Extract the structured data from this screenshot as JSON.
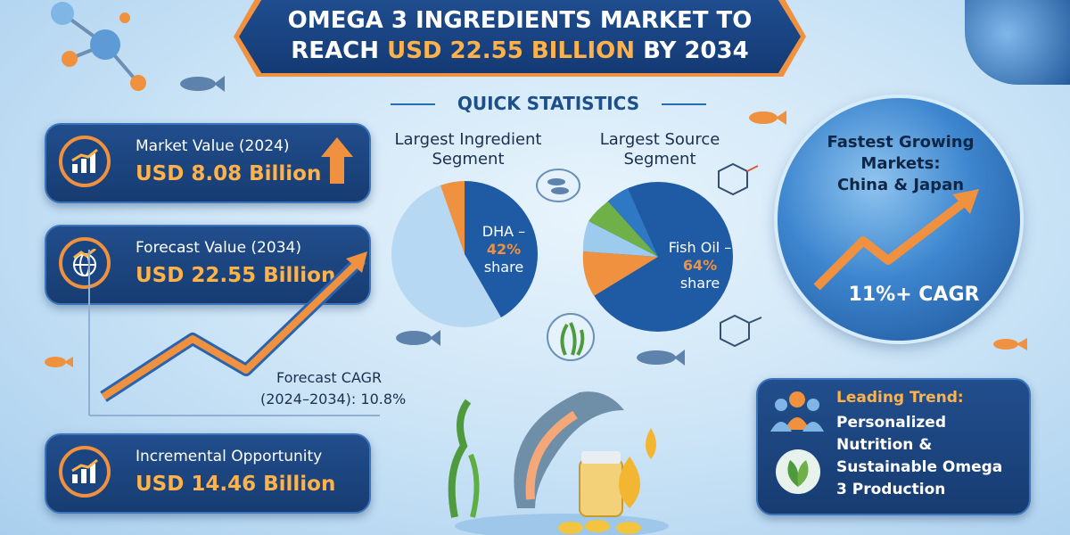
{
  "title": {
    "line1": "OMEGA 3 INGREDIENTS MARKET TO",
    "line2_prefix": "REACH ",
    "line2_accent": "USD 22.55 BILLION",
    "line2_suffix": " BY 2034"
  },
  "quick_statistics": "QUICK STATISTICS",
  "cards": [
    {
      "label": "Market Value (2024)",
      "value": "USD 8.08 Billion",
      "icon": "bar-chart-growth-icon"
    },
    {
      "label": "Forecast Value (2034)",
      "value": "USD 22.55 Billion",
      "icon": "globe-growth-icon"
    },
    {
      "label": "Incremental Opportunity",
      "value": "USD 14.46 Billion",
      "icon": "bar-chart-growth-icon"
    }
  ],
  "forecast_cagr": {
    "line1": "Forecast CAGR",
    "line2": "(2024–2034): 10.8%"
  },
  "ingredient_pie": {
    "title_line1": "Largest Ingredient",
    "title_line2": "Segment",
    "label_name": "DHA –",
    "label_pct": "42%",
    "label_suffix": "share"
  },
  "source_pie": {
    "title_line1": "Largest Source",
    "title_line2": "Segment",
    "label_name": "Fish Oil –",
    "label_pct": "64%",
    "label_suffix": "share"
  },
  "globe": {
    "title_line1": "Fastest Growing",
    "title_line2": "Markets:",
    "title_line3": "China & Japan",
    "cagr": "11%+ CAGR"
  },
  "trend": {
    "title": "Leading Trend:",
    "line1": "Personalized",
    "line2": "Nutrition &",
    "line3": "Sustainable Omega",
    "line4": "3 Production"
  },
  "colors": {
    "navy": "#1a4580",
    "orange": "#f0913f",
    "gold": "#ffb24a",
    "pie_blue_dark": "#1f5aa5",
    "pie_blue_light": "#b7d8f3"
  }
}
